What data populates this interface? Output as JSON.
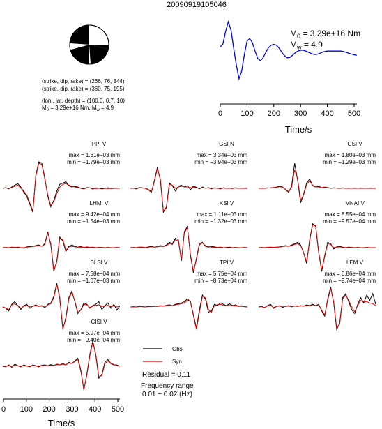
{
  "header": {
    "event_id": "20090919105046"
  },
  "mechanism": {
    "line1": "(strike, dip, rake) = (266, 76, 344)",
    "line2": "(strike, dip, rake) = (360, 75, 195)",
    "line3": "(lon., lat, depth) = (100.0, 0.7, 10)",
    "m0_prefix": "M",
    "m0_sub": "0",
    "m0_value": " = 3.29e+16 Nm, M",
    "mw_sub": "w",
    "mw_value": " = 4.9"
  },
  "stf_panel": {
    "m0_label": "M",
    "m0_sub": "0",
    "m0_text": " = 3.29e+16 Nm",
    "mw_label": "M",
    "mw_sub": "w",
    "mw_text": " = 4.9",
    "xlabel": "Time/s",
    "xticks": [
      "0",
      "100",
      "200",
      "300",
      "400",
      "500"
    ]
  },
  "bottom_axis": {
    "xlabel": "Time/s",
    "xticks": [
      "0",
      "100",
      "200",
      "300",
      "400",
      "500"
    ]
  },
  "legend": {
    "obs": "Obs.",
    "syn": "Syn.",
    "residual": "Residual = 0.11",
    "freq_title": "Frequency range",
    "freq_value": "0.01 − 0.02 (Hz)"
  },
  "colors": {
    "observed": "#000000",
    "synthetic": "#e00000",
    "stf": "#0000dd"
  },
  "chart_data": [
    {
      "type": "line",
      "name_id": "source-time-function",
      "x": [
        0,
        10,
        20,
        30,
        40,
        50,
        60,
        70,
        80,
        90,
        100,
        110,
        120,
        130,
        140,
        150,
        160,
        170,
        180,
        190,
        200,
        210,
        220,
        230,
        240,
        250,
        260,
        270,
        280,
        290,
        300,
        310,
        320,
        330,
        340,
        350,
        360,
        370,
        380,
        390,
        400,
        410,
        420,
        430,
        440,
        450,
        460,
        470,
        480,
        490,
        500,
        510
      ],
      "y": [
        0.38,
        0.45,
        0.75,
        0.98,
        0.78,
        0.35,
        -0.05,
        -0.38,
        -0.2,
        0.2,
        0.52,
        0.58,
        0.48,
        0.28,
        0.1,
        0.05,
        0.12,
        0.25,
        0.36,
        0.42,
        0.44,
        0.42,
        0.35,
        0.25,
        0.17,
        0.12,
        0.13,
        0.18,
        0.24,
        0.28,
        0.3,
        0.3,
        0.28,
        0.25,
        0.22,
        0.2,
        0.2,
        0.22,
        0.25,
        0.27,
        0.28,
        0.28,
        0.28,
        0.28,
        0.28,
        0.28,
        0.27,
        0.25,
        0.23,
        0.21,
        0.19,
        0.18
      ],
      "xlim": [
        0,
        510
      ],
      "xlabel": "Time/s",
      "xticks": [
        0,
        100,
        200,
        300,
        400,
        500
      ]
    },
    {
      "type": "line",
      "station": "PPI V",
      "max": "max = 1.61e−03 mm",
      "min": "min = −1.79e−03 mm",
      "observed": [
        0,
        0.03,
        -0.02,
        0.05,
        0.12,
        0.18,
        0.05,
        -0.15,
        -0.3,
        -0.6,
        -0.9,
        0.5,
        1.0,
        0.95,
        0.4,
        -0.3,
        -0.7,
        -0.45,
        -0.1,
        0.15,
        0.2,
        0.25,
        0.1,
        0.05,
        0.08,
        0.05,
        0,
        -0.02,
        0.03,
        0.02,
        -0.03,
        0.02,
        0.01,
        -0.02,
        0,
        0.02,
        -0.01,
        0,
        0.01,
        0
      ],
      "synthetic": [
        0,
        0.02,
        0,
        0.03,
        0.08,
        0.12,
        0.02,
        -0.1,
        -0.25,
        -0.55,
        -0.85,
        0.45,
        0.95,
        0.9,
        0.35,
        -0.25,
        -0.65,
        -0.5,
        -0.2,
        0.05,
        0.15,
        0.18,
        0.12,
        0.08,
        0.05,
        0.03,
        0.01,
        0,
        0.01,
        0.02,
        0,
        -0.01,
        0,
        0.01,
        0,
        -0.01,
        0,
        0.01,
        0,
        0
      ]
    },
    {
      "type": "line",
      "station": "GSI N",
      "max": "max = 3.34e−03 mm",
      "min": "min = −3.94e−03 mm",
      "observed": [
        0,
        0.01,
        -0.02,
        0.03,
        0.02,
        0,
        -0.05,
        -0.15,
        0.3,
        0.8,
        0.3,
        -0.9,
        -0.7,
        0.2,
        0.1,
        -0.1,
        0.08,
        0.12,
        0.05,
        0.1,
        -0.05,
        0.08,
        0.04,
        -0.02,
        0.05,
        0,
        0.03,
        -0.02,
        0.02,
        0.01,
        -0.02,
        0.02,
        0,
        0.01,
        -0.01,
        0.02,
        0,
        0,
        0.01,
        0
      ],
      "synthetic": [
        0,
        0.01,
        0,
        0.02,
        0.01,
        0,
        -0.04,
        -0.12,
        0.25,
        0.75,
        0.35,
        -0.85,
        -0.75,
        0.15,
        0.12,
        0,
        0.05,
        0.08,
        0.06,
        0.05,
        0.02,
        0.04,
        0.02,
        0.01,
        0.02,
        0.01,
        0.01,
        0,
        0.01,
        0,
        0,
        0.01,
        0,
        0,
        0,
        0.01,
        0,
        0,
        0,
        0
      ]
    },
    {
      "type": "line",
      "station": "GSI V",
      "max": "max = 1.80e−03 mm",
      "min": "min = −1.29e−03 mm",
      "observed": [
        0,
        0.01,
        0,
        0.02,
        0.01,
        0.03,
        0.05,
        0.08,
        0.05,
        -0.05,
        -0.15,
        0.1,
        0.95,
        0.3,
        -0.55,
        -0.2,
        0.2,
        0.35,
        0.1,
        0.05,
        0.08,
        0.02,
        0.05,
        0.03,
        0,
        0.02,
        0.01,
        0,
        0.02,
        0,
        0.01,
        0,
        0.01,
        0,
        0.01,
        0,
        0,
        0.01,
        0,
        0
      ],
      "synthetic": [
        0,
        0,
        0,
        0.01,
        0.02,
        0.03,
        0.04,
        0.06,
        0.04,
        -0.04,
        -0.12,
        0.05,
        0.7,
        0.35,
        -0.45,
        -0.25,
        0.15,
        0.28,
        0.12,
        0.06,
        0.05,
        0.03,
        0.03,
        0.02,
        0.01,
        0.01,
        0.01,
        0,
        0.01,
        0,
        0,
        0,
        0,
        0,
        0,
        0,
        0,
        0,
        0,
        0
      ]
    },
    {
      "type": "line",
      "station": "LHMI V",
      "max": "max = 9.42e−04 mm",
      "min": "min = −1.54e−03 mm",
      "observed": [
        0,
        0.01,
        0,
        0.02,
        0.01,
        0.02,
        0,
        -0.02,
        0.03,
        0.05,
        0.04,
        0.08,
        0.1,
        0.05,
        0.15,
        0.6,
        0.1,
        -0.9,
        -0.5,
        0.4,
        0.25,
        -0.15,
        0.05,
        0.1,
        0.05,
        0.02,
        0.05,
        0,
        0.03,
        0.01,
        0.02,
        0,
        0.01,
        0.01,
        0,
        0.01,
        0,
        0,
        0.01,
        0
      ],
      "synthetic": [
        0,
        0,
        0,
        0.01,
        0.01,
        0.01,
        0,
        0,
        0.02,
        0.03,
        0.04,
        0.06,
        0.08,
        0.05,
        0.12,
        0.55,
        0.15,
        -0.85,
        -0.55,
        0.35,
        0.3,
        -0.1,
        0.02,
        0.05,
        0.03,
        0.02,
        0.02,
        0.01,
        0.01,
        0.01,
        0.01,
        0,
        0,
        0,
        0,
        0,
        0,
        0,
        0,
        0
      ]
    },
    {
      "type": "line",
      "station": "KSI V",
      "max": "max = 1.11e−03 mm",
      "min": "min = −1.32e−03 mm",
      "observed": [
        0,
        0.01,
        0,
        0.02,
        0.02,
        0,
        0.03,
        0.05,
        0.02,
        0.04,
        0.08,
        0.05,
        0.1,
        0.2,
        0.15,
        0.35,
        0.3,
        -0.5,
        0.6,
        0.8,
        -0.3,
        -0.95,
        -0.4,
        0.15,
        0.2,
        0.05,
        0.02,
        0.05,
        0.03,
        0.01,
        0.02,
        0,
        0.01,
        0.02,
        0,
        0.01,
        0,
        0,
        0.01,
        0
      ],
      "synthetic": [
        0,
        0,
        0,
        0.01,
        0.01,
        0,
        0.02,
        0.03,
        0.02,
        0.03,
        0.05,
        0.04,
        0.08,
        0.15,
        0.12,
        0.3,
        0.25,
        -0.45,
        0.55,
        0.75,
        -0.25,
        -0.9,
        -0.45,
        0.1,
        0.18,
        0.08,
        0.04,
        0.02,
        0.01,
        0.01,
        0.01,
        0,
        0,
        0,
        0,
        0,
        0,
        0,
        0,
        0
      ]
    },
    {
      "type": "line",
      "station": "MNAI V",
      "max": "max = 8.55e−04 mm",
      "min": "min = −9.57e−04 mm",
      "observed": [
        0,
        0.01,
        0,
        0.01,
        0.02,
        0.01,
        0.02,
        0.03,
        0.05,
        0.08,
        0.05,
        0.1,
        0.15,
        0.2,
        0.1,
        -0.2,
        -0.6,
        0.3,
        0.9,
        0.8,
        -0.2,
        -0.9,
        -0.3,
        0.2,
        0.15,
        -0.05,
        0.03,
        0.05,
        0.02,
        0,
        0.02,
        0.01,
        0,
        0.01,
        0,
        0,
        0.01,
        0,
        0,
        0
      ],
      "synthetic": [
        0,
        0,
        0,
        0.01,
        0.01,
        0.01,
        0.02,
        0.02,
        0.04,
        0.06,
        0.05,
        0.08,
        0.12,
        0.15,
        0.08,
        -0.18,
        -0.55,
        0.25,
        0.85,
        0.85,
        -0.15,
        -0.85,
        -0.35,
        0.15,
        0.12,
        0,
        0.02,
        0.03,
        0.01,
        0,
        0.01,
        0,
        0,
        0,
        0,
        0,
        0,
        0,
        0,
        0
      ]
    },
    {
      "type": "line",
      "station": "BLSI V",
      "max": "max = 7.58e−04 mm",
      "min": "min = −1.07e−03 mm",
      "observed": [
        0,
        -0.05,
        -0.15,
        0.1,
        0.2,
        0.05,
        -0.1,
        0.05,
        0.1,
        -0.05,
        0.03,
        0.08,
        0.02,
        0.05,
        -0.03,
        0.1,
        0.15,
        0.4,
        0.9,
        0.3,
        -0.85,
        -0.4,
        0.35,
        0.6,
        0.2,
        -0.25,
        -0.1,
        0.15,
        0.1,
        -0.05,
        0.05,
        0.1,
        0.2,
        -0.1,
        0.05,
        0.15,
        -0.05,
        0.1,
        -0.12,
        0.05
      ],
      "synthetic": [
        0,
        -0.04,
        -0.1,
        0.08,
        0.12,
        0.05,
        -0.05,
        0.03,
        0.06,
        0,
        0.02,
        0.05,
        0.02,
        0.03,
        0,
        0.08,
        0.12,
        0.35,
        0.85,
        0.35,
        -0.8,
        -0.45,
        0.3,
        0.55,
        0.22,
        -0.2,
        -0.12,
        0.1,
        0.08,
        -0.02,
        0.03,
        0.06,
        0.08,
        0.02,
        0.03,
        0.06,
        0.01,
        0.04,
        0,
        0.02
      ]
    },
    {
      "type": "line",
      "station": "TPI V",
      "max": "max = 5.75e−04 mm",
      "min": "min = −8.73e−04 mm",
      "observed": [
        0,
        0.01,
        0,
        0.02,
        0.01,
        0,
        0.02,
        0.01,
        0.03,
        0.02,
        0.05,
        0.03,
        0.06,
        0.08,
        0.05,
        0.1,
        0.12,
        0.15,
        0.2,
        0.3,
        0.2,
        -0.3,
        -0.8,
        -0.1,
        0.45,
        0.3,
        -0.2,
        -0.15,
        0.1,
        0.05,
        0.15,
        0.1,
        0.05,
        0.12,
        0.05,
        0.08,
        0.02,
        0.05,
        0.01,
        0
      ],
      "synthetic": [
        0,
        0,
        0,
        0.01,
        0.01,
        0,
        0.01,
        0.01,
        0.02,
        0.02,
        0.03,
        0.03,
        0.05,
        0.06,
        0.05,
        0.08,
        0.1,
        0.12,
        0.15,
        0.25,
        0.22,
        -0.35,
        -0.85,
        -0.2,
        0.4,
        0.35,
        -0.1,
        -0.2,
        0.05,
        0.08,
        0.1,
        0.06,
        0.05,
        0.06,
        0.04,
        0.04,
        0.02,
        0.02,
        0.01,
        0
      ]
    },
    {
      "type": "line",
      "station": "LEM V",
      "max": "max = 6.86e−04 mm",
      "min": "min = −9.74e−04 mm",
      "observed": [
        0,
        0.02,
        -0.03,
        0.05,
        0.1,
        -0.05,
        0.02,
        0.05,
        -0.02,
        0.03,
        0.05,
        0,
        0.04,
        0.02,
        0.05,
        0.03,
        0.08,
        0.05,
        0.1,
        0.05,
        0.1,
        -0.15,
        -0.35,
        0.3,
        0.75,
        0.15,
        -0.85,
        -0.6,
        0.35,
        0.5,
        0.2,
        -0.1,
        -0.25,
        0.1,
        0.35,
        0.15,
        0.45,
        0.25,
        0.5,
        0.1
      ],
      "synthetic": [
        0,
        0.01,
        -0.02,
        0.04,
        0.06,
        -0.02,
        0.02,
        0.03,
        0,
        0.02,
        0.03,
        0.01,
        0.03,
        0.02,
        0.04,
        0.03,
        0.05,
        0.04,
        0.08,
        0.05,
        0.08,
        -0.12,
        -0.3,
        0.25,
        0.7,
        0.2,
        -0.8,
        -0.65,
        0.3,
        0.45,
        0.25,
        0,
        -0.18,
        0.05,
        0.25,
        0.2,
        0.2,
        0.15,
        0.12,
        0.05
      ]
    },
    {
      "type": "line",
      "station": "CISI V",
      "max": "max = 5.97e−04 mm",
      "min": "min = −9.40e−04 mm",
      "observed": [
        0,
        -0.02,
        0.05,
        -0.04,
        0.08,
        0.02,
        -0.03,
        0.05,
        0.01,
        -0.02,
        0.05,
        0.02,
        -0.03,
        0.04,
        0.05,
        0.02,
        0.06,
        0.03,
        0.08,
        0.05,
        0.1,
        0.05,
        0.15,
        0.1,
        0.2,
        0.3,
        -0.15,
        -0.9,
        -0.3,
        0.45,
        0.95,
        0.4,
        -0.45,
        -0.3,
        0.15,
        0.25,
        0.1,
        0.05,
        0.05,
        0
      ],
      "synthetic": [
        0,
        -0.01,
        0.03,
        -0.02,
        0.05,
        0.02,
        -0.01,
        0.03,
        0.01,
        0,
        0.03,
        0.02,
        0,
        0.03,
        0.03,
        0.02,
        0.04,
        0.03,
        0.06,
        0.05,
        0.08,
        0.05,
        0.12,
        0.1,
        0.18,
        0.25,
        -0.2,
        -0.85,
        -0.35,
        0.4,
        0.9,
        0.45,
        -0.4,
        -0.35,
        0.1,
        0.2,
        0.12,
        0.06,
        0.03,
        0
      ]
    }
  ]
}
